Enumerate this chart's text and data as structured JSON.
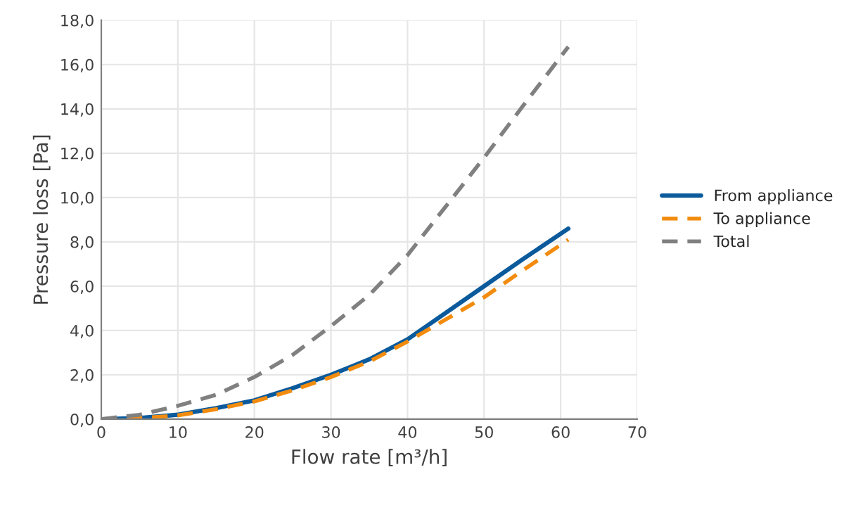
{
  "chart_data": {
    "type": "line",
    "xlabel": "Flow rate [m³/h]",
    "ylabel": "Pressure loss [Pa]",
    "xlim": [
      0,
      70
    ],
    "xticks": [
      0,
      10,
      20,
      30,
      40,
      50,
      60,
      70
    ],
    "ylim": [
      0,
      18
    ],
    "yticks": [
      {
        "value": 0,
        "label": "0,0"
      },
      {
        "value": 2,
        "label": "2,0"
      },
      {
        "value": 4,
        "label": "4,0"
      },
      {
        "value": 6,
        "label": "6,0"
      },
      {
        "value": 8,
        "label": "8,0"
      },
      {
        "value": 10,
        "label": "10,0"
      },
      {
        "value": 12,
        "label": "12,0"
      },
      {
        "value": 14,
        "label": "14,0"
      },
      {
        "value": 16,
        "label": "16,0"
      },
      {
        "value": 18,
        "label": "18,0"
      }
    ],
    "grid": true,
    "legend": "right",
    "marker": "none",
    "x": [
      0,
      5,
      10,
      15,
      20,
      25,
      30,
      35,
      40,
      45,
      50,
      55,
      61
    ],
    "series": [
      {
        "name": "From appliance",
        "color": "#0a5a9c",
        "line_style": "solid",
        "values": [
          0,
          0.05,
          0.2,
          0.5,
          0.85,
          1.4,
          2.0,
          2.7,
          3.6,
          4.8,
          6.0,
          7.2,
          8.6
        ]
      },
      {
        "name": "To appliance",
        "color": "#f28c0f",
        "line_style": "dashed",
        "values": [
          0,
          0.04,
          0.17,
          0.45,
          0.8,
          1.3,
          1.9,
          2.6,
          3.5,
          4.5,
          5.5,
          6.7,
          8.1
        ]
      },
      {
        "name": "Total",
        "color": "#808080",
        "line_style": "dashed",
        "values": [
          0,
          0.2,
          0.6,
          1.1,
          1.9,
          2.9,
          4.2,
          5.6,
          7.4,
          9.6,
          11.8,
          14.1,
          16.8
        ]
      }
    ]
  }
}
